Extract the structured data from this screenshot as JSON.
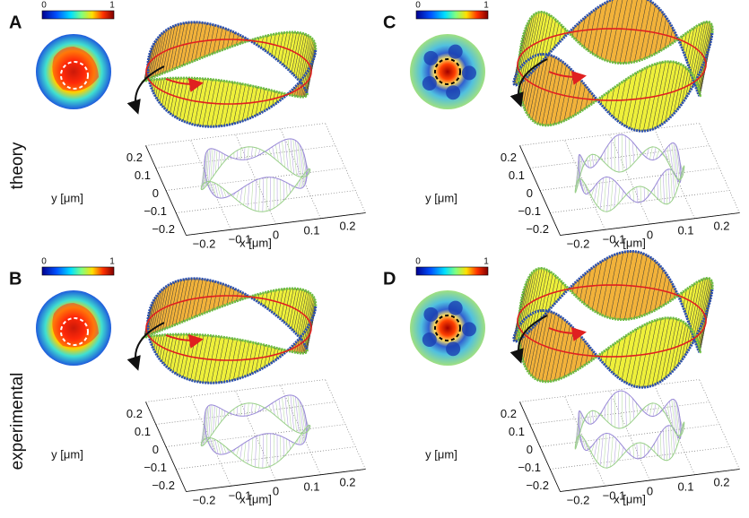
{
  "panels": [
    {
      "label": "A"
    },
    {
      "label": "C"
    },
    {
      "label": "B"
    },
    {
      "label": "D"
    }
  ],
  "rows": [
    "theory",
    "experimental"
  ],
  "colorbar": {
    "min": "0",
    "max": "1"
  },
  "axes": {
    "x_label": "x [μm]",
    "y_label": "y [μm]",
    "x_ticks": [
      "−0.2",
      "−0.1",
      "0",
      "0.1",
      "0.2"
    ],
    "y_ticks": [
      "−0.2",
      "−0.1",
      "0",
      "0.1",
      "0.2"
    ]
  }
}
